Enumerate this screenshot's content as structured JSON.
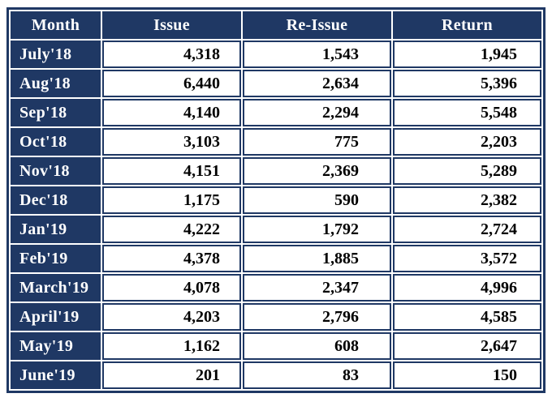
{
  "colors": {
    "navy": "#1f3864",
    "header_text": "#ffffff",
    "cell_background": "#ffffff",
    "cell_text": "#000000"
  },
  "table": {
    "columns": [
      "Month",
      "Issue",
      "Re-Issue",
      "Return"
    ],
    "rows": [
      {
        "month": "July'18",
        "issue": "4,318",
        "re_issue": "1,543",
        "return": "1,945"
      },
      {
        "month": "Aug'18",
        "issue": "6,440",
        "re_issue": "2,634",
        "return": "5,396"
      },
      {
        "month": "Sep'18",
        "issue": "4,140",
        "re_issue": "2,294",
        "return": "5,548"
      },
      {
        "month": "Oct'18",
        "issue": "3,103",
        "re_issue": "775",
        "return": "2,203"
      },
      {
        "month": "Nov'18",
        "issue": "4,151",
        "re_issue": "2,369",
        "return": "5,289"
      },
      {
        "month": "Dec'18",
        "issue": "1,175",
        "re_issue": "590",
        "return": "2,382"
      },
      {
        "month": "Jan'19",
        "issue": "4,222",
        "re_issue": "1,792",
        "return": "2,724"
      },
      {
        "month": "Feb'19",
        "issue": "4,378",
        "re_issue": "1,885",
        "return": "3,572"
      },
      {
        "month": "March'19",
        "issue": "4,078",
        "re_issue": "2,347",
        "return": "4,996"
      },
      {
        "month": "April'19",
        "issue": "4,203",
        "re_issue": "2,796",
        "return": "4,585"
      },
      {
        "month": "May'19",
        "issue": "1,162",
        "re_issue": "608",
        "return": "2,647"
      },
      {
        "month": "June'19",
        "issue": "201",
        "re_issue": "83",
        "return": "150"
      }
    ]
  },
  "chart_data": {
    "type": "table",
    "title": "",
    "categories": [
      "July'18",
      "Aug'18",
      "Sep'18",
      "Oct'18",
      "Nov'18",
      "Dec'18",
      "Jan'19",
      "Feb'19",
      "March'19",
      "April'19",
      "May'19",
      "June'19"
    ],
    "series": [
      {
        "name": "Issue",
        "values": [
          4318,
          6440,
          4140,
          3103,
          4151,
          1175,
          4222,
          4378,
          4078,
          4203,
          1162,
          201
        ]
      },
      {
        "name": "Re-Issue",
        "values": [
          1543,
          2634,
          2294,
          775,
          2369,
          590,
          1792,
          1885,
          2347,
          2796,
          608,
          83
        ]
      },
      {
        "name": "Return",
        "values": [
          1945,
          5396,
          5548,
          2203,
          5289,
          2382,
          2724,
          3572,
          4996,
          4585,
          2647,
          150
        ]
      }
    ]
  }
}
